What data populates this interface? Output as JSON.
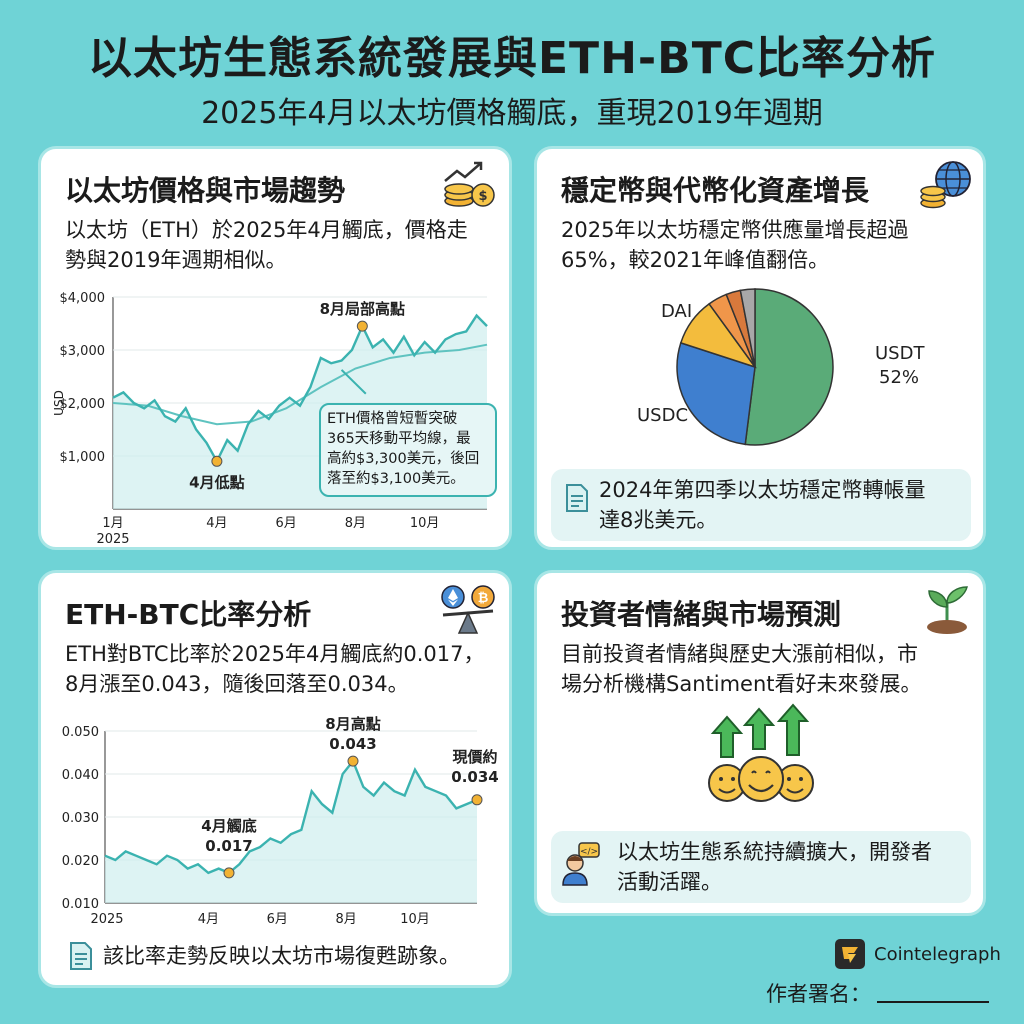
{
  "header": {
    "title": "以太坊生態系統發展與ETH-BTC比率分析",
    "subtitle": "2025年4月以太坊價格觸底，重現2019年週期"
  },
  "eth_card": {
    "title": "以太坊價格與市場趨勢",
    "body_line1": "以太坊（ETH）於2025年4月觸底，價格走",
    "body_line2": "勢與2019年週期相似。",
    "callout_lines": [
      "ETH價格曾短暫突破",
      "365天移動平均線，最",
      "高約$3,300美元，後回",
      "落至約$3,100美元。"
    ],
    "annotations": {
      "low": "4月低點",
      "high": "8月局部高點"
    }
  },
  "stable_card": {
    "title": "穩定幣與代幣化資產增長",
    "body_line1": "2025年以太坊穩定幣供應量增長超過",
    "body_line2": "65%，較2021年峰值翻倍。",
    "note_line1": "2024年第四季以太坊穩定幣轉帳量",
    "note_line2": "達8兆美元。"
  },
  "ratio_card": {
    "title": "ETH-BTC比率分析",
    "body_line1": "ETH對BTC比率於2025年4月觸底約0.017，",
    "body_line2": "8月漲至0.043，隨後回落至0.034。",
    "note": "該比率走勢反映以太坊市場復甦跡象。",
    "annotations": {
      "low_line1": "4月觸底",
      "low_line2": "0.017",
      "high_line1": "8月高點",
      "high_line2": "0.043",
      "current_line1": "現價約",
      "current_line2": "0.034"
    }
  },
  "sentiment_card": {
    "title": "投資者情緒與市場預測",
    "body_line1": "目前投資者情緒與歷史大漲前相似，市",
    "body_line2": "場分析機構Santiment看好未來發展。",
    "note_line1": "以太坊生態系統持續擴大，開發者",
    "note_line2": "活動活躍。"
  },
  "footer": {
    "brand": "Cointelegraph",
    "author_label": "作者署名："
  },
  "colors": {
    "background": "#6fd3d6",
    "line": "#3bb3b0",
    "marker": "#f2b233",
    "usdt": "#5aab78",
    "usdc": "#3f7fcf",
    "dai": "#f3bc3d"
  },
  "chart_data": [
    {
      "type": "line",
      "title": "",
      "xlabel": "",
      "ylabel": "USD",
      "x_ticks": [
        "1月\n2025",
        "4月",
        "6月",
        "8月",
        "10月"
      ],
      "y_ticks": [
        "$1,000",
        "$2,000",
        "$3,000",
        "$4,000"
      ],
      "ylim": [
        0,
        4000
      ],
      "series": [
        {
          "name": "",
          "x": [
            1.0,
            1.3,
            1.6,
            1.9,
            2.2,
            2.5,
            2.8,
            3.1,
            3.4,
            3.7,
            4.0,
            4.3,
            4.6,
            4.9,
            5.2,
            5.5,
            5.8,
            6.1,
            6.4,
            6.7,
            7.0,
            7.3,
            7.6,
            7.9,
            8.2,
            8.5,
            8.8,
            9.1,
            9.4,
            9.7,
            10.0,
            10.3,
            10.6,
            10.9,
            11.2,
            11.5,
            11.8
          ],
          "values": [
            2100,
            2200,
            2000,
            1900,
            2050,
            1750,
            1650,
            1900,
            1500,
            1250,
            900,
            1300,
            1100,
            1600,
            1850,
            1700,
            1950,
            2100,
            1950,
            2300,
            2850,
            2750,
            2800,
            3000,
            3450,
            3050,
            3200,
            2950,
            3250,
            2900,
            3150,
            2950,
            3200,
            3300,
            3350,
            3650,
            3450
          ]
        },
        {
          "name": "",
          "x": [
            1.0,
            2.0,
            3.0,
            4.0,
            5.0,
            6.0,
            7.0,
            8.0,
            9.0,
            10.0,
            11.0,
            12.0
          ],
          "values": [
            2000,
            1950,
            1750,
            1600,
            1650,
            1900,
            2300,
            2650,
            2850,
            2950,
            3000,
            3100
          ]
        }
      ],
      "points": [
        {
          "label": "4月低點",
          "x": 4.0,
          "y": 900
        },
        {
          "label": "8月局部高點",
          "x": 8.2,
          "y": 3450
        }
      ]
    },
    {
      "type": "pie",
      "title": "",
      "slices": [
        {
          "label": "USDT",
          "value": 52
        },
        {
          "label": "USDC",
          "value": 28
        },
        {
          "label": "DAI",
          "value": 10
        },
        {
          "label": "",
          "value": 4
        },
        {
          "label": "",
          "value": 3
        },
        {
          "label": "",
          "value": 3
        }
      ],
      "visible_labels": {
        "usdt": "USDT",
        "usdt_pct": "52%",
        "usdc": "USDC",
        "dai": "DAI"
      }
    },
    {
      "type": "line",
      "title": "",
      "xlabel": "",
      "ylabel": "",
      "x_ticks": [
        "2025",
        "4月",
        "6月",
        "8月",
        "10月"
      ],
      "y_ticks": [
        "0.010",
        "0.020",
        "0.030",
        "0.040",
        "0.050"
      ],
      "ylim": [
        0.01,
        0.05
      ],
      "series": [
        {
          "name": "",
          "x": [
            1.0,
            1.3,
            1.6,
            1.9,
            2.2,
            2.5,
            2.8,
            3.1,
            3.4,
            3.7,
            4.0,
            4.3,
            4.6,
            4.9,
            5.2,
            5.5,
            5.8,
            6.1,
            6.4,
            6.7,
            7.0,
            7.3,
            7.6,
            7.9,
            8.2,
            8.5,
            8.8,
            9.1,
            9.4,
            9.7,
            10.0,
            10.3,
            10.6,
            10.9,
            11.2,
            11.5,
            11.8
          ],
          "values": [
            0.021,
            0.02,
            0.022,
            0.021,
            0.02,
            0.019,
            0.021,
            0.02,
            0.018,
            0.019,
            0.017,
            0.018,
            0.017,
            0.019,
            0.022,
            0.023,
            0.025,
            0.024,
            0.026,
            0.027,
            0.036,
            0.033,
            0.031,
            0.04,
            0.043,
            0.037,
            0.035,
            0.038,
            0.036,
            0.035,
            0.041,
            0.037,
            0.036,
            0.035,
            0.032,
            0.033,
            0.034
          ]
        }
      ],
      "points": [
        {
          "label": "4月觸底",
          "x": 4.6,
          "y": 0.017
        },
        {
          "label": "8月高點",
          "x": 8.2,
          "y": 0.043
        },
        {
          "label": "現價約",
          "x": 11.8,
          "y": 0.034
        }
      ]
    }
  ]
}
